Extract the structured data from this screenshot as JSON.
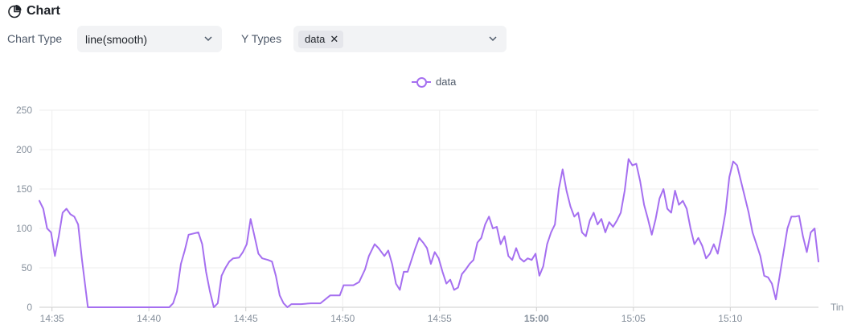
{
  "header": {
    "title": "Chart",
    "icon": "pie-chart-icon"
  },
  "controls": {
    "chart_type_label": "Chart Type",
    "chart_type_value": "line(smooth)",
    "y_types_label": "Y Types",
    "y_types_tags": [
      "data"
    ]
  },
  "colors": {
    "series": "#a56ff0",
    "grid": "#eeeeee",
    "axis_text": "#86909c"
  },
  "chart_data": {
    "type": "line",
    "smooth": true,
    "title": "",
    "xlabel": "Tin",
    "ylabel": "",
    "ylim": [
      0,
      250
    ],
    "y_ticks": [
      "0",
      "50",
      "100",
      "150",
      "200",
      "250"
    ],
    "x_ticks": [
      "14:35",
      "14:40",
      "14:45",
      "14:50",
      "14:55",
      "15:00",
      "15:05",
      "15:10"
    ],
    "x_tick_emphasis": "15:00",
    "grid": true,
    "legend": "top-center",
    "x_range_minutes": [
      0,
      40.2
    ],
    "series": [
      {
        "name": "data",
        "points": [
          [
            0,
            135
          ],
          [
            0.2,
            125
          ],
          [
            0.4,
            100
          ],
          [
            0.6,
            95
          ],
          [
            0.8,
            65
          ],
          [
            1.0,
            90
          ],
          [
            1.2,
            120
          ],
          [
            1.4,
            125
          ],
          [
            1.6,
            118
          ],
          [
            1.8,
            115
          ],
          [
            2.0,
            105
          ],
          [
            2.2,
            60
          ],
          [
            2.5,
            0
          ],
          [
            3.5,
            0
          ],
          [
            5.0,
            0
          ],
          [
            6.7,
            0
          ],
          [
            6.9,
            5
          ],
          [
            7.1,
            20
          ],
          [
            7.3,
            55
          ],
          [
            7.5,
            72
          ],
          [
            7.7,
            92
          ],
          [
            8.2,
            95
          ],
          [
            8.4,
            80
          ],
          [
            8.6,
            45
          ],
          [
            8.8,
            20
          ],
          [
            9.0,
            0
          ],
          [
            9.2,
            5
          ],
          [
            9.4,
            40
          ],
          [
            9.6,
            50
          ],
          [
            9.8,
            58
          ],
          [
            10.0,
            62
          ],
          [
            10.3,
            63
          ],
          [
            10.5,
            70
          ],
          [
            10.7,
            80
          ],
          [
            10.9,
            112
          ],
          [
            11.1,
            90
          ],
          [
            11.3,
            68
          ],
          [
            11.5,
            62
          ],
          [
            11.8,
            60
          ],
          [
            12.0,
            58
          ],
          [
            12.2,
            40
          ],
          [
            12.4,
            15
          ],
          [
            12.6,
            5
          ],
          [
            12.8,
            0
          ],
          [
            13.0,
            4
          ],
          [
            13.5,
            4
          ],
          [
            14.0,
            5
          ],
          [
            14.5,
            5
          ],
          [
            15.0,
            15
          ],
          [
            15.5,
            15
          ],
          [
            15.7,
            28
          ],
          [
            16.2,
            28
          ],
          [
            16.5,
            32
          ],
          [
            16.8,
            48
          ],
          [
            17.0,
            65
          ],
          [
            17.3,
            80
          ],
          [
            17.5,
            75
          ],
          [
            17.8,
            65
          ],
          [
            18.0,
            72
          ],
          [
            18.2,
            55
          ],
          [
            18.4,
            30
          ],
          [
            18.6,
            22
          ],
          [
            18.8,
            45
          ],
          [
            19.0,
            45
          ],
          [
            19.2,
            60
          ],
          [
            19.4,
            75
          ],
          [
            19.6,
            88
          ],
          [
            19.8,
            82
          ],
          [
            20.0,
            75
          ],
          [
            20.2,
            55
          ],
          [
            20.4,
            70
          ],
          [
            20.6,
            62
          ],
          [
            20.8,
            45
          ],
          [
            21.0,
            30
          ],
          [
            21.2,
            35
          ],
          [
            21.4,
            22
          ],
          [
            21.6,
            25
          ],
          [
            21.8,
            42
          ],
          [
            22.0,
            48
          ],
          [
            22.2,
            55
          ],
          [
            22.4,
            60
          ],
          [
            22.6,
            82
          ],
          [
            22.8,
            88
          ],
          [
            23.0,
            105
          ],
          [
            23.2,
            115
          ],
          [
            23.4,
            100
          ],
          [
            23.6,
            102
          ],
          [
            23.8,
            80
          ],
          [
            24.0,
            90
          ],
          [
            24.2,
            65
          ],
          [
            24.4,
            60
          ],
          [
            24.6,
            75
          ],
          [
            24.8,
            62
          ],
          [
            25.0,
            58
          ],
          [
            25.2,
            62
          ],
          [
            25.4,
            60
          ],
          [
            25.6,
            68
          ],
          [
            25.8,
            40
          ],
          [
            26.0,
            52
          ],
          [
            26.2,
            80
          ],
          [
            26.4,
            95
          ],
          [
            26.6,
            105
          ],
          [
            26.8,
            150
          ],
          [
            27.0,
            175
          ],
          [
            27.2,
            148
          ],
          [
            27.4,
            128
          ],
          [
            27.6,
            115
          ],
          [
            27.8,
            120
          ],
          [
            28.0,
            95
          ],
          [
            28.2,
            90
          ],
          [
            28.4,
            110
          ],
          [
            28.6,
            120
          ],
          [
            28.8,
            105
          ],
          [
            29.0,
            112
          ],
          [
            29.2,
            95
          ],
          [
            29.4,
            108
          ],
          [
            29.6,
            102
          ],
          [
            29.8,
            110
          ],
          [
            30.0,
            120
          ],
          [
            30.2,
            148
          ],
          [
            30.4,
            188
          ],
          [
            30.6,
            180
          ],
          [
            30.8,
            182
          ],
          [
            31.0,
            160
          ],
          [
            31.2,
            130
          ],
          [
            31.4,
            112
          ],
          [
            31.6,
            92
          ],
          [
            31.8,
            112
          ],
          [
            32.0,
            138
          ],
          [
            32.2,
            150
          ],
          [
            32.4,
            125
          ],
          [
            32.6,
            120
          ],
          [
            32.8,
            148
          ],
          [
            33.0,
            130
          ],
          [
            33.2,
            135
          ],
          [
            33.4,
            125
          ],
          [
            33.6,
            100
          ],
          [
            33.8,
            80
          ],
          [
            34.0,
            88
          ],
          [
            34.2,
            78
          ],
          [
            34.4,
            62
          ],
          [
            34.6,
            68
          ],
          [
            34.8,
            80
          ],
          [
            35.0,
            68
          ],
          [
            35.2,
            92
          ],
          [
            35.4,
            120
          ],
          [
            35.6,
            165
          ],
          [
            35.8,
            185
          ],
          [
            36.0,
            180
          ],
          [
            36.2,
            160
          ],
          [
            36.4,
            140
          ],
          [
            36.6,
            120
          ],
          [
            36.8,
            95
          ],
          [
            37.0,
            80
          ],
          [
            37.2,
            65
          ],
          [
            37.4,
            40
          ],
          [
            37.6,
            38
          ],
          [
            37.8,
            30
          ],
          [
            38.0,
            10
          ],
          [
            38.2,
            40
          ],
          [
            38.4,
            70
          ],
          [
            38.6,
            100
          ],
          [
            38.8,
            115
          ],
          [
            39.0,
            115
          ],
          [
            39.2,
            116
          ],
          [
            39.4,
            90
          ],
          [
            39.6,
            70
          ],
          [
            39.8,
            95
          ],
          [
            40.0,
            100
          ],
          [
            40.2,
            58
          ]
        ]
      }
    ]
  }
}
